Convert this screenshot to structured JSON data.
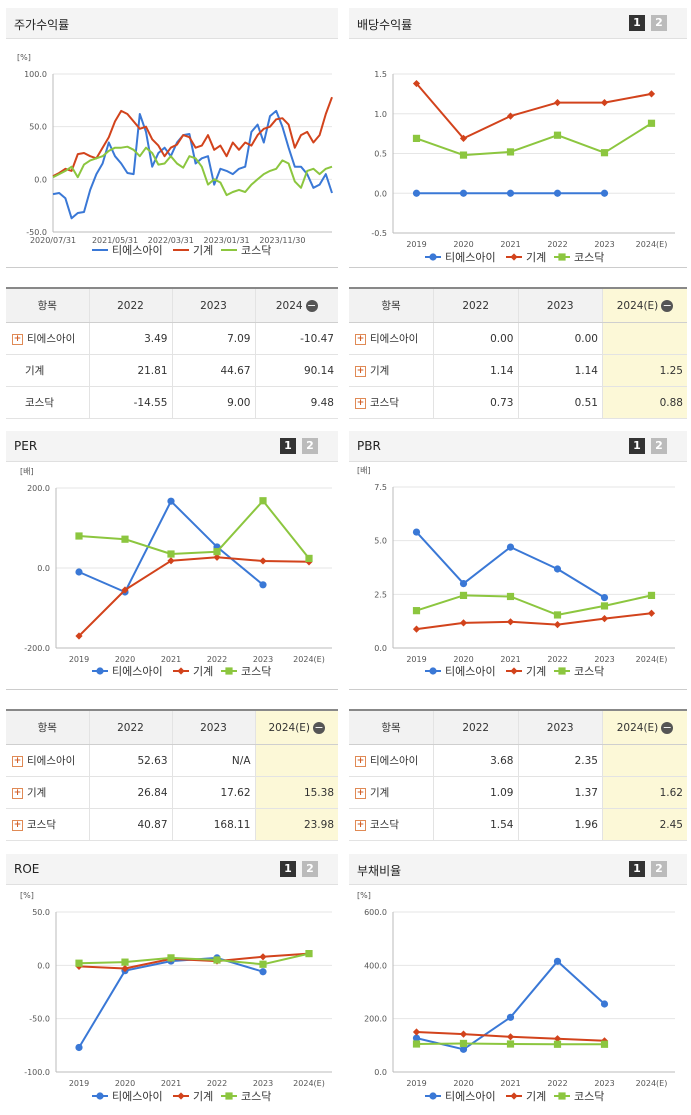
{
  "colors": {
    "tes": "#3a78d6",
    "machine": "#d2431c",
    "kosdaq": "#8cc63f"
  },
  "legend": [
    "티에스아이",
    "기계",
    "코스닥"
  ],
  "panels": {
    "stock": {
      "title": "주가수익률"
    },
    "div": {
      "title": "배당수익률"
    },
    "per": {
      "title": "PER"
    },
    "pbr": {
      "title": "PBR"
    },
    "roe": {
      "title": "ROE"
    },
    "debt": {
      "title": "부채비율"
    },
    "btn1": "1",
    "btn2": "2"
  },
  "tables": {
    "stock": {
      "headers": [
        "항목",
        "2022",
        "2023",
        "2024"
      ],
      "rows": [
        {
          "name": "티에스아이",
          "vals": [
            "3.49",
            "7.09",
            "-10.47"
          ]
        },
        {
          "name": "기계",
          "vals": [
            "21.81",
            "44.67",
            "90.14"
          ]
        },
        {
          "name": "코스닥",
          "vals": [
            "-14.55",
            "9.00",
            "9.48"
          ]
        }
      ]
    },
    "div": {
      "headers": [
        "항목",
        "2022",
        "2023",
        "2024(E)"
      ],
      "rows": [
        {
          "name": "티에스아이",
          "vals": [
            "0.00",
            "0.00",
            ""
          ]
        },
        {
          "name": "기계",
          "vals": [
            "1.14",
            "1.14",
            "1.25"
          ]
        },
        {
          "name": "코스닥",
          "vals": [
            "0.73",
            "0.51",
            "0.88"
          ]
        }
      ]
    },
    "per": {
      "headers": [
        "항목",
        "2022",
        "2023",
        "2024(E)"
      ],
      "rows": [
        {
          "name": "티에스아이",
          "vals": [
            "52.63",
            "N/A",
            ""
          ]
        },
        {
          "name": "기계",
          "vals": [
            "26.84",
            "17.62",
            "15.38"
          ]
        },
        {
          "name": "코스닥",
          "vals": [
            "40.87",
            "168.11",
            "23.98"
          ]
        }
      ]
    },
    "pbr": {
      "headers": [
        "항목",
        "2022",
        "2023",
        "2024(E)"
      ],
      "rows": [
        {
          "name": "티에스아이",
          "vals": [
            "3.68",
            "2.35",
            ""
          ]
        },
        {
          "name": "기계",
          "vals": [
            "1.09",
            "1.37",
            "1.62"
          ]
        },
        {
          "name": "코스닥",
          "vals": [
            "1.54",
            "1.96",
            "2.45"
          ]
        }
      ]
    }
  },
  "chart_data": [
    {
      "id": "stock",
      "type": "line",
      "unit": "[%]",
      "yticks": [
        "100.0",
        "50.0",
        "0.0",
        "-50.0"
      ],
      "ylim": [
        -50,
        100
      ],
      "xticks": [
        "2020/07/31",
        "2021/05/31",
        "2022/03/31",
        "2023/01/31",
        "2023/11/30"
      ],
      "series": [
        {
          "name": "티에스아이",
          "values": [
            -14,
            -13,
            -18,
            -37,
            -32,
            -31,
            -10,
            5,
            15,
            35,
            22,
            15,
            6,
            5,
            62,
            45,
            12,
            25,
            30,
            22,
            35,
            42,
            43,
            15,
            20,
            22,
            -5,
            10,
            8,
            5,
            10,
            12,
            45,
            52,
            35,
            60,
            65,
            50,
            30,
            12,
            12,
            5,
            -8,
            -5,
            5,
            -13
          ]
        },
        {
          "name": "기계",
          "values": [
            3,
            6,
            10,
            8,
            24,
            25,
            22,
            20,
            30,
            40,
            55,
            65,
            62,
            55,
            48,
            50,
            38,
            32,
            22,
            30,
            33,
            42,
            40,
            30,
            32,
            42,
            28,
            32,
            22,
            35,
            28,
            35,
            32,
            42,
            48,
            50,
            57,
            58,
            52,
            30,
            42,
            45,
            35,
            42,
            62,
            78
          ]
        },
        {
          "name": "코스닥",
          "values": [
            2,
            5,
            8,
            12,
            2,
            14,
            18,
            20,
            22,
            27,
            30,
            30,
            31,
            28,
            22,
            30,
            25,
            14,
            15,
            22,
            15,
            11,
            22,
            20,
            12,
            -5,
            0,
            -3,
            -15,
            -12,
            -10,
            -12,
            -5,
            0,
            5,
            8,
            10,
            18,
            15,
            -2,
            -8,
            8,
            10,
            5,
            10,
            12
          ]
        }
      ]
    },
    {
      "id": "div",
      "type": "line",
      "unit": "",
      "yticks": [
        "1.5",
        "1.0",
        "0.5",
        "0.0",
        "-0.5"
      ],
      "ylim": [
        -0.5,
        1.5
      ],
      "xticks": [
        "2019",
        "2020",
        "2021",
        "2022",
        "2023",
        "2024(E)"
      ],
      "series": [
        {
          "name": "티에스아이",
          "values": [
            0.0,
            0.0,
            0.0,
            0.0,
            0.0,
            null
          ]
        },
        {
          "name": "기계",
          "values": [
            1.38,
            0.69,
            0.97,
            1.14,
            1.14,
            1.25
          ]
        },
        {
          "name": "코스닥",
          "values": [
            0.69,
            0.48,
            0.52,
            0.73,
            0.51,
            0.88
          ]
        }
      ]
    },
    {
      "id": "per",
      "type": "line",
      "unit": "[배]",
      "yticks": [
        "200.0",
        "0.0",
        "-200.0"
      ],
      "ylim": [
        -200,
        200
      ],
      "xticks": [
        "2019",
        "2020",
        "2021",
        "2022",
        "2023",
        "2024(E)"
      ],
      "series": [
        {
          "name": "티에스아이",
          "values": [
            -10,
            -60,
            167,
            52.63,
            -42,
            null
          ]
        },
        {
          "name": "기계",
          "values": [
            -170,
            -55,
            18,
            26.84,
            17.62,
            15.38
          ]
        },
        {
          "name": "코스닥",
          "values": [
            80,
            72,
            35,
            40.87,
            168.11,
            23.98
          ]
        }
      ]
    },
    {
      "id": "pbr",
      "type": "line",
      "unit": "[배]",
      "yticks": [
        "7.5",
        "5.0",
        "2.5",
        "0.0"
      ],
      "ylim": [
        0,
        7.5
      ],
      "xticks": [
        "2019",
        "2020",
        "2021",
        "2022",
        "2023",
        "2024(E)"
      ],
      "series": [
        {
          "name": "티에스아이",
          "values": [
            5.4,
            3.0,
            4.7,
            3.68,
            2.35,
            null
          ]
        },
        {
          "name": "기계",
          "values": [
            0.88,
            1.17,
            1.22,
            1.09,
            1.37,
            1.62
          ]
        },
        {
          "name": "코스닥",
          "values": [
            1.74,
            2.45,
            2.4,
            1.54,
            1.96,
            2.45
          ]
        }
      ]
    },
    {
      "id": "roe",
      "type": "line",
      "unit": "[%]",
      "yticks": [
        "50.0",
        "0.0",
        "-50.0",
        "-100.0"
      ],
      "ylim": [
        -100,
        50
      ],
      "xticks": [
        "2019",
        "2020",
        "2021",
        "2022",
        "2023",
        "2024(E)"
      ],
      "series": [
        {
          "name": "티에스아이",
          "values": [
            -77,
            -5,
            4,
            7,
            -6,
            null
          ]
        },
        {
          "name": "기계",
          "values": [
            -1,
            -3,
            6,
            4,
            8,
            11
          ]
        },
        {
          "name": "코스닥",
          "values": [
            2,
            3,
            7,
            5,
            1,
            11
          ]
        }
      ]
    },
    {
      "id": "debt",
      "type": "line",
      "unit": "[%]",
      "yticks": [
        "600.0",
        "400.0",
        "200.0",
        "0.0"
      ],
      "ylim": [
        0,
        600
      ],
      "xticks": [
        "2019",
        "2020",
        "2021",
        "2022",
        "2023",
        "2024(E)"
      ],
      "series": [
        {
          "name": "티에스아이",
          "values": [
            127,
            85,
            205,
            415,
            255,
            null
          ]
        },
        {
          "name": "기계",
          "values": [
            150,
            142,
            132,
            125,
            117,
            null
          ]
        },
        {
          "name": "코스닥",
          "values": [
            105,
            107,
            105,
            104,
            104,
            null
          ]
        }
      ]
    }
  ]
}
